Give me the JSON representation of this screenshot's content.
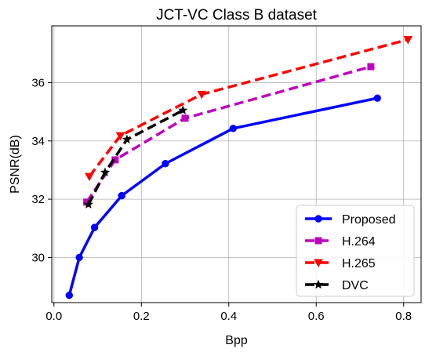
{
  "chart_data": {
    "type": "line",
    "title": "JCT-VC Class B dataset",
    "xlabel": "Bpp",
    "ylabel": "PSNR(dB)",
    "xlim": [
      -0.005,
      0.84
    ],
    "ylim": [
      28.45,
      37.95
    ],
    "xticks": [
      0.0,
      0.2,
      0.4,
      0.6,
      0.8
    ],
    "xtick_labels": [
      "0.0",
      "0.2",
      "0.4",
      "0.6",
      "0.8"
    ],
    "yticks": [
      30,
      32,
      34,
      36
    ],
    "ytick_labels": [
      "30",
      "32",
      "34",
      "36"
    ],
    "grid": true,
    "legend_position": "bottom-right",
    "series": [
      {
        "name": "Proposed",
        "color": "#0000ff",
        "linestyle": "solid",
        "marker": "circle",
        "x": [
          0.035,
          0.058,
          0.093,
          0.155,
          0.255,
          0.41,
          0.74
        ],
        "y": [
          28.7,
          30.0,
          31.03,
          32.12,
          33.22,
          34.43,
          35.47
        ]
      },
      {
        "name": "H.264",
        "color": "#bf00bf",
        "linestyle": "dashed",
        "marker": "square",
        "x": [
          0.075,
          0.14,
          0.3,
          0.725
        ],
        "y": [
          31.9,
          33.35,
          34.78,
          36.55
        ]
      },
      {
        "name": "H.265",
        "color": "#ff0000",
        "linestyle": "dashed",
        "marker": "triangle-down",
        "x": [
          0.081,
          0.152,
          0.338,
          0.81
        ],
        "y": [
          32.78,
          34.18,
          35.6,
          37.48
        ]
      },
      {
        "name": "DVC",
        "color": "#000000",
        "linestyle": "dashed",
        "marker": "star",
        "x": [
          0.079,
          0.117,
          0.167,
          0.295
        ],
        "y": [
          31.82,
          32.92,
          34.05,
          35.05
        ]
      }
    ]
  }
}
